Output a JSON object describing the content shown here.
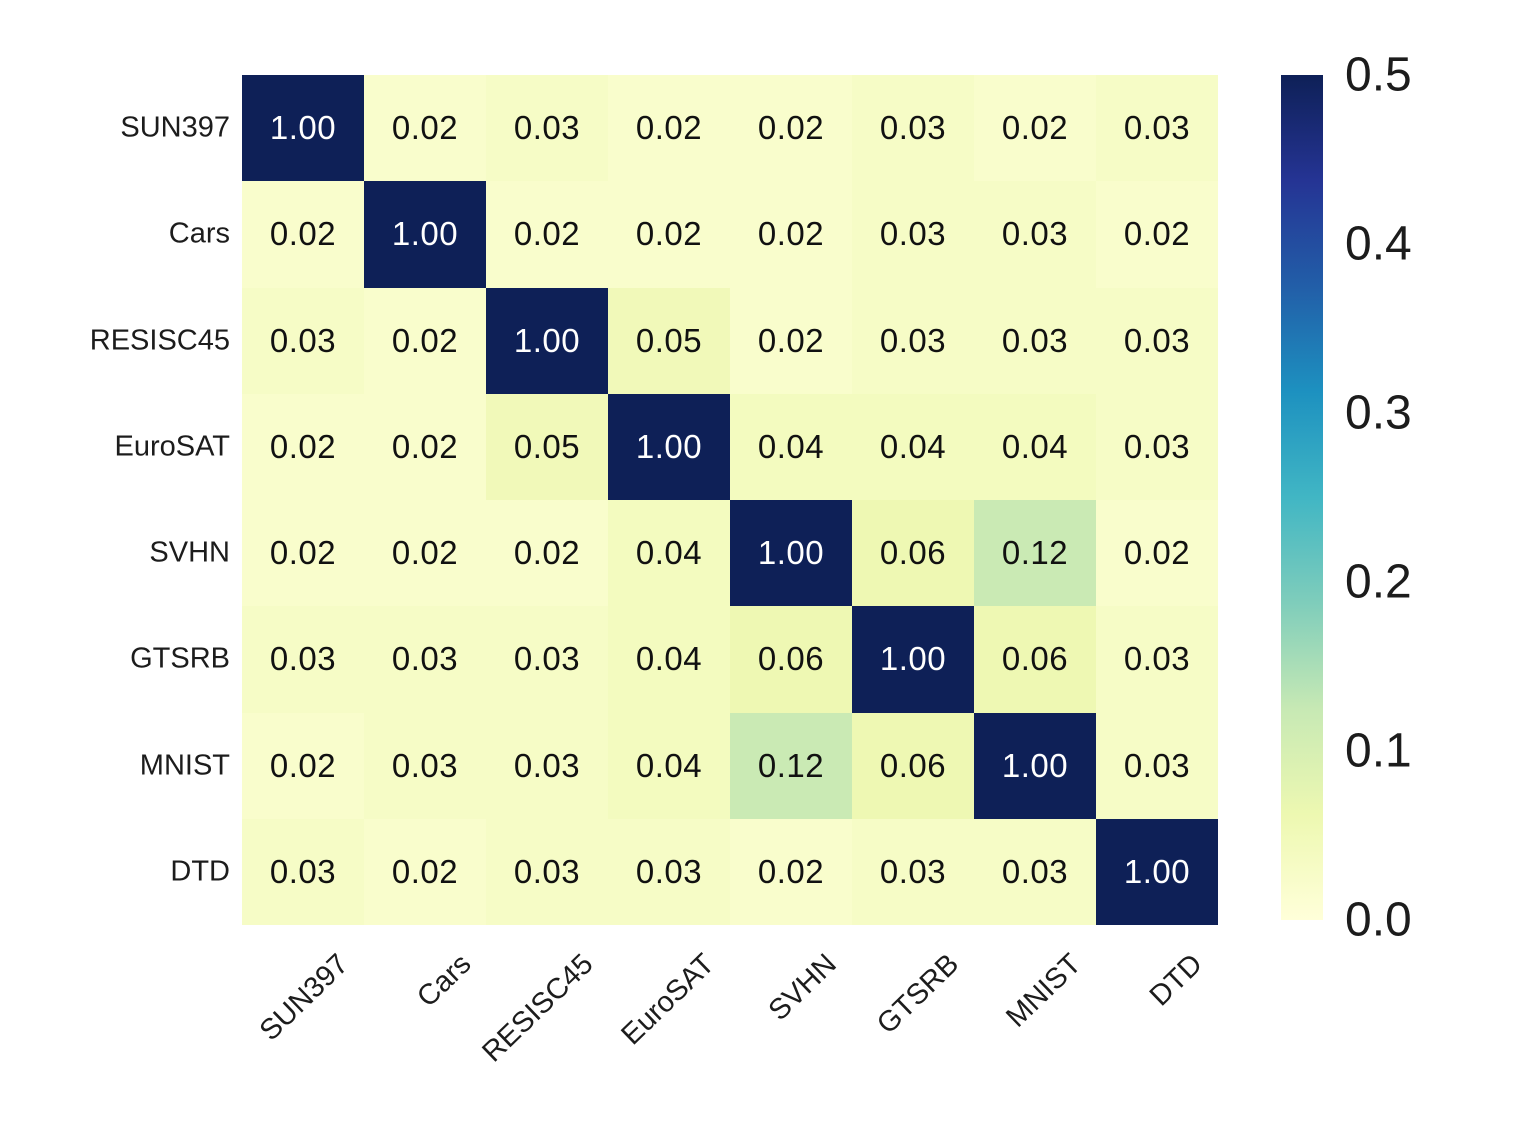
{
  "chart_data": {
    "type": "heatmap",
    "title": "",
    "row_labels": [
      "SUN397",
      "Cars",
      "RESISC45",
      "EuroSAT",
      "SVHN",
      "GTSRB",
      "MNIST",
      "DTD"
    ],
    "col_labels": [
      "SUN397",
      "Cars",
      "RESISC45",
      "EuroSAT",
      "SVHN",
      "GTSRB",
      "MNIST",
      "DTD"
    ],
    "matrix": [
      [
        1.0,
        0.02,
        0.03,
        0.02,
        0.02,
        0.03,
        0.02,
        0.03
      ],
      [
        0.02,
        1.0,
        0.02,
        0.02,
        0.02,
        0.03,
        0.03,
        0.02
      ],
      [
        0.03,
        0.02,
        1.0,
        0.05,
        0.02,
        0.03,
        0.03,
        0.03
      ],
      [
        0.02,
        0.02,
        0.05,
        1.0,
        0.04,
        0.04,
        0.04,
        0.03
      ],
      [
        0.02,
        0.02,
        0.02,
        0.04,
        1.0,
        0.06,
        0.12,
        0.02
      ],
      [
        0.03,
        0.03,
        0.03,
        0.04,
        0.06,
        1.0,
        0.06,
        0.03
      ],
      [
        0.02,
        0.03,
        0.03,
        0.04,
        0.12,
        0.06,
        1.0,
        0.03
      ],
      [
        0.03,
        0.02,
        0.03,
        0.03,
        0.02,
        0.03,
        0.03,
        1.0
      ]
    ],
    "value_format_decimals": 2,
    "vmin": 0.0,
    "vmax": 0.5,
    "colorbar_ticks": [
      "0.5",
      "0.4",
      "0.3",
      "0.2",
      "0.1",
      "0.0"
    ],
    "colormap": {
      "name": "YlGnBu",
      "anchors": [
        [
          0.0,
          "#ffffd9"
        ],
        [
          0.125,
          "#edf8b1"
        ],
        [
          0.25,
          "#c7e9b4"
        ],
        [
          0.375,
          "#7fcdbb"
        ],
        [
          0.5,
          "#41b6c4"
        ],
        [
          0.625,
          "#1d91c0"
        ],
        [
          0.75,
          "#225ea8"
        ],
        [
          0.875,
          "#253494"
        ],
        [
          1.0,
          "#0e2057"
        ]
      ]
    },
    "colors": {
      "background": "#ffffff",
      "annotation_dark": "#111111",
      "annotation_light": "#ffffff",
      "tick_label": "#1c1c1c"
    },
    "layout_hints": {
      "grid": "off",
      "legend": "colorbar-right",
      "x_tick_rotation_deg": -44
    }
  }
}
